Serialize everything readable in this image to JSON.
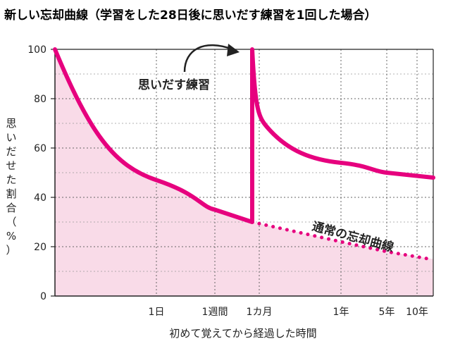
{
  "chart_data": {
    "type": "line",
    "title": "新しい忘却曲線（学習をした28日後に思いだす練習を1回した場合）",
    "xlabel": "初めて覚えてから経過した時間",
    "ylabel": "思いだせた割合（%）",
    "ylim": [
      0,
      100
    ],
    "yticks": [
      "0",
      "20",
      "40",
      "60",
      "80",
      "100"
    ],
    "xtick_labels": [
      "1日",
      "1週間",
      "1カ月",
      "1年",
      "5年",
      "10年"
    ],
    "grid": true,
    "annotations": {
      "practice": "思いだす練習",
      "forgetting": "通常の忘却曲線"
    },
    "series": [
      {
        "points": [
          {
            "x": "0",
            "y": 100
          },
          {
            "x": "1日",
            "y": 47
          },
          {
            "x": "1週間",
            "y": 35
          },
          {
            "x": "28日",
            "y": 30
          },
          {
            "x": "28日",
            "y": 100
          },
          {
            "x": "1カ月",
            "y": 70
          },
          {
            "x": "1年",
            "y": 54
          },
          {
            "x": "5年",
            "y": 50
          },
          {
            "x": "10年",
            "y": 48
          }
        ]
      },
      {
        "points": [
          {
            "x": "28日",
            "y": 30
          },
          {
            "x": "1年",
            "y": 22
          },
          {
            "x": "5年",
            "y": 18
          },
          {
            "x": "10年",
            "y": 15
          }
        ]
      }
    ],
    "colors": {
      "accent": "#e6007e",
      "fill": "#f9dbe8",
      "axis": "#222222",
      "grid": "#555555"
    }
  }
}
